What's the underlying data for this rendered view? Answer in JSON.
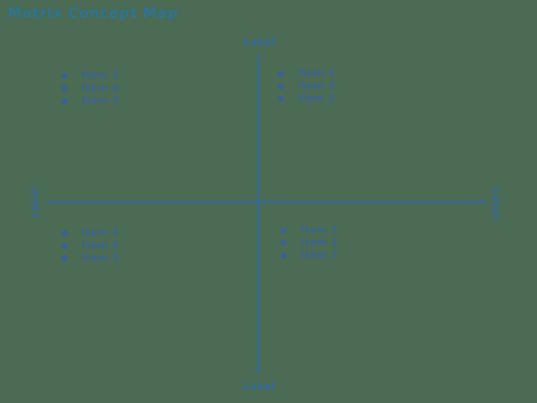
{
  "title": "Matrix Concept Map",
  "colors": {
    "bg": "#4b6b54",
    "title": "#2d7394",
    "axis": "#35699a",
    "label": "#35699a",
    "item": "#3d6492",
    "bullet": "#3a648f"
  },
  "axes": {
    "top_label": "Label",
    "bottom_label": "Label",
    "left_label": "Label",
    "right_label": "Label"
  },
  "quadrants": [
    {
      "position": "top-left",
      "items": [
        "Item 1",
        "Item 2",
        "Item 2"
      ]
    },
    {
      "position": "top-right",
      "items": [
        "Item 1",
        "Item 2",
        "Item 2"
      ]
    },
    {
      "position": "bottom-left",
      "items": [
        "Item 1",
        "Item 2",
        "Item 2"
      ]
    },
    {
      "position": "bottom-right",
      "items": [
        "Item 1",
        "Item 2",
        "Item 2"
      ]
    }
  ]
}
